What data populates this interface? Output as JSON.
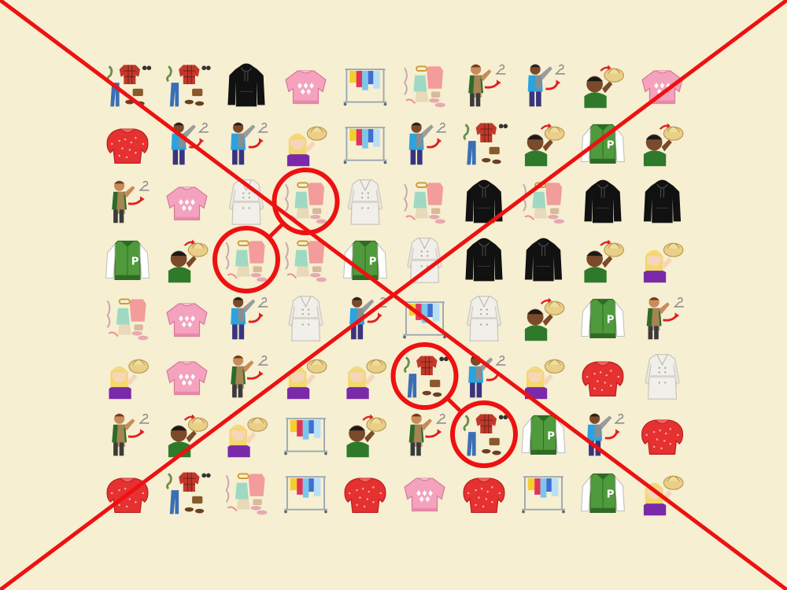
{
  "game": {
    "background_color": "#f6efd2",
    "mark_color": "#ee1111",
    "status": "failed",
    "rows": 8,
    "cols": 10,
    "grid": [
      [
        "outfit-plaid-icon",
        "outfit-plaid-icon",
        "black-hoodie-icon",
        "pink-sweater-icon",
        "clothes-rack-icon",
        "outfit-pastel-icon",
        "boy-coat-hanger-icon",
        "boy-jacket-hanger-icon",
        "boy-hat-icon",
        "pink-sweater-icon"
      ],
      [
        "red-blouse-icon",
        "boy-jacket-hanger-icon",
        "boy-jacket-hanger-icon",
        "girl-hat-icon",
        "clothes-rack-icon",
        "boy-jacket-hanger-icon",
        "outfit-plaid-icon",
        "boy-hat-icon",
        "varsity-jacket-icon",
        "boy-hat-icon"
      ],
      [
        "boy-coat-hanger-icon",
        "pink-sweater-icon",
        "white-trench-coat-icon",
        "outfit-pastel-icon",
        "white-trench-coat-icon",
        "outfit-pastel-icon",
        "black-hoodie-icon",
        "outfit-pastel-icon",
        "black-hoodie-icon",
        "black-hoodie-icon"
      ],
      [
        "varsity-jacket-icon",
        "boy-hat-icon",
        "outfit-pastel-icon",
        "outfit-pastel-icon",
        "varsity-jacket-icon",
        "white-trench-coat-icon",
        "black-hoodie-icon",
        "black-hoodie-icon",
        "boy-hat-icon",
        "girl-hat-icon"
      ],
      [
        "outfit-pastel-icon",
        "pink-sweater-icon",
        "boy-jacket-hanger-icon",
        "white-trench-coat-icon",
        "boy-jacket-hanger-icon",
        "clothes-rack-icon",
        "white-trench-coat-icon",
        "boy-hat-icon",
        "varsity-jacket-icon",
        "boy-coat-hanger-icon"
      ],
      [
        "girl-hat-icon",
        "pink-sweater-icon",
        "boy-coat-hanger-icon",
        "girl-hat-icon",
        "girl-hat-icon",
        "outfit-plaid-icon",
        "boy-jacket-hanger-icon",
        "girl-hat-icon",
        "red-blouse-icon",
        "white-trench-coat-icon"
      ],
      [
        "boy-coat-hanger-icon",
        "boy-hat-icon",
        "girl-hat-icon",
        "clothes-rack-icon",
        "boy-hat-icon",
        "boy-coat-hanger-icon",
        "outfit-plaid-icon",
        "varsity-jacket-icon",
        "boy-jacket-hanger-icon",
        "red-blouse-icon"
      ],
      [
        "red-blouse-icon",
        "outfit-plaid-icon",
        "outfit-pastel-icon",
        "clothes-rack-icon",
        "red-blouse-icon",
        "pink-sweater-icon",
        "red-blouse-icon",
        "clothes-rack-icon",
        "varsity-jacket-icon",
        "girl-hat-icon"
      ]
    ],
    "matched_pairs": [
      {
        "a": [
          2,
          3
        ],
        "b": [
          3,
          2
        ]
      },
      {
        "a": [
          5,
          5
        ],
        "b": [
          6,
          6
        ]
      }
    ]
  }
}
